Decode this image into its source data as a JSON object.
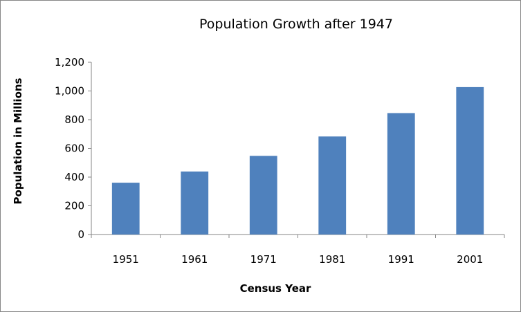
{
  "chart_data": {
    "type": "bar",
    "title": "Population Growth after 1947",
    "xlabel": "Census Year",
    "ylabel": "Population in Millions",
    "categories": [
      "1951",
      "1961",
      "1971",
      "1981",
      "1991",
      "2001"
    ],
    "values": [
      361,
      439,
      548,
      683,
      846,
      1027
    ],
    "ylim": [
      0,
      1200
    ],
    "yticks": [
      0,
      200,
      400,
      600,
      800,
      1000,
      1200
    ],
    "ytick_labels": [
      "0",
      "200",
      "400",
      "600",
      "800",
      "1,000",
      "1,200"
    ],
    "grid": false,
    "legend": "none",
    "bar_color": "#4F81BD"
  }
}
